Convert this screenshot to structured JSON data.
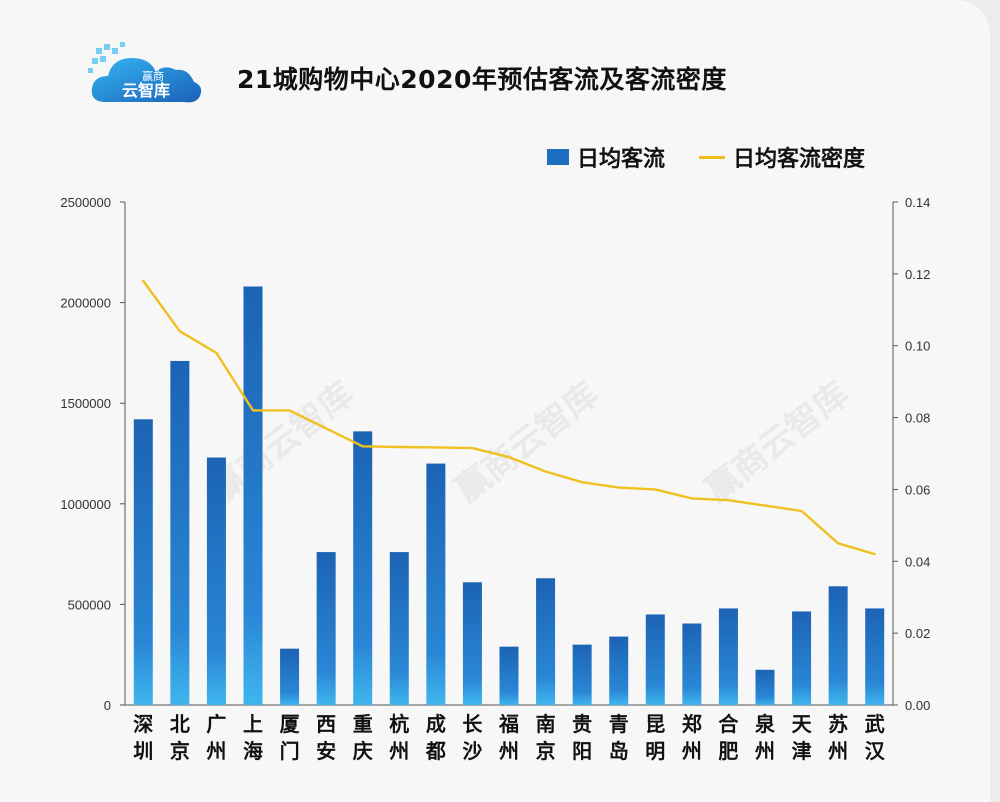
{
  "logo": {
    "line1": "赢商",
    "line2": "云智库"
  },
  "watermark": "赢商云智库",
  "chart_data": {
    "type": "bar",
    "title": "21城购物中心2020年预估客流及客流密度",
    "categories": [
      "深圳",
      "北京",
      "广州",
      "上海",
      "厦门",
      "西安",
      "重庆",
      "杭州",
      "成都",
      "长沙",
      "福州",
      "南京",
      "贵阳",
      "青岛",
      "昆明",
      "郑州",
      "合肥",
      "泉州",
      "天津",
      "苏州",
      "武汉"
    ],
    "series": [
      {
        "name": "日均客流",
        "type": "bar",
        "axis": "left",
        "color": "#1f6fc0",
        "values": [
          1420000,
          1710000,
          1230000,
          2080000,
          280000,
          760000,
          1360000,
          760000,
          1200000,
          610000,
          290000,
          630000,
          300000,
          340000,
          450000,
          405000,
          480000,
          175000,
          465000,
          590000,
          480000
        ]
      },
      {
        "name": "日均客流密度",
        "type": "line",
        "axis": "right",
        "color": "#f0c020",
        "values": [
          0.118,
          0.104,
          0.098,
          0.082,
          0.082,
          0.077,
          0.072,
          0.0718,
          0.0717,
          0.0715,
          0.069,
          0.065,
          0.062,
          0.0605,
          0.06,
          0.0575,
          0.057,
          0.0555,
          0.054,
          0.045,
          0.042
        ]
      }
    ],
    "y_left": {
      "min": 0,
      "max": 2500000,
      "ticks": [
        "0",
        "500000",
        "1000000",
        "1500000",
        "2000000",
        "2500000"
      ]
    },
    "y_right": {
      "min": 0,
      "max": 0.14,
      "ticks": [
        "0.00",
        "0.02",
        "0.04",
        "0.06",
        "0.08",
        "0.10",
        "0.12",
        "0.14"
      ]
    },
    "legend_position": "top-right",
    "grid": false
  }
}
